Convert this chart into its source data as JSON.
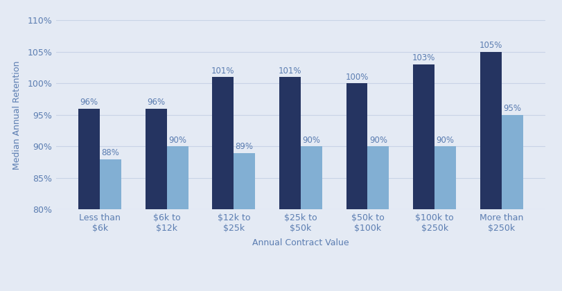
{
  "categories": [
    "Less than\n$6k",
    "$6k to\n$12k",
    "$12k to\n$25k",
    "$25k to\n$50k",
    "$50k to\n$100k",
    "$100k to\n$250k",
    "More than\n$250k"
  ],
  "net_values": [
    96,
    96,
    101,
    101,
    100,
    103,
    105
  ],
  "gross_values": [
    88,
    90,
    89,
    90,
    90,
    90,
    95
  ],
  "net_color": "#253461",
  "gross_color": "#82afd3",
  "background_color": "#e4eaf4",
  "ylabel": "Median Annual Retention",
  "xlabel": "Annual Contract Value",
  "ylim": [
    80,
    110
  ],
  "yticks": [
    80,
    85,
    90,
    95,
    100,
    105,
    110
  ],
  "bar_width": 0.32,
  "label_color": "#5b7db1",
  "tick_color": "#5b7db1",
  "grid_color": "#c8d3e6",
  "label_fontsize": 9,
  "tick_fontsize": 9,
  "bar_label_fontsize": 8.5,
  "legend_fontsize": 8.5
}
